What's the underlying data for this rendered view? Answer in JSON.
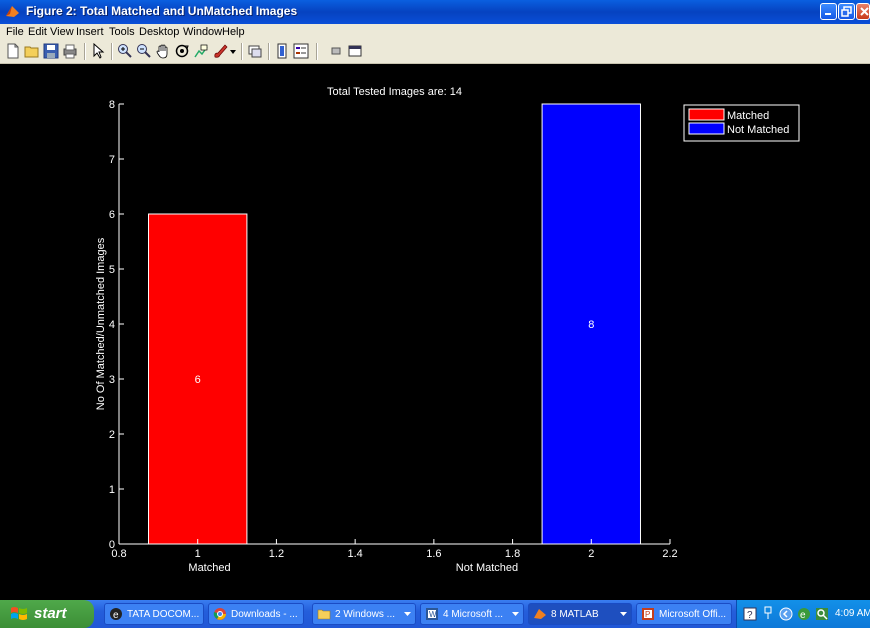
{
  "window": {
    "title": "Figure 2: Total Matched and UnMatched Images"
  },
  "menu": [
    "File",
    "Edit",
    "View",
    "Insert",
    "Tools",
    "Desktop",
    "Window",
    "Help"
  ],
  "toolbar_icons": [
    "new-figure-icon",
    "open-file-icon",
    "save-icon",
    "print-icon",
    "arrow-pointer-icon",
    "zoom-in-icon",
    "zoom-out-icon",
    "pan-hand-icon",
    "rotate-3d-icon",
    "data-cursor-icon",
    "brush-icon",
    "brush-dropdown-icon",
    "link-plot-icon",
    "colorbar-icon",
    "legend-icon",
    "hide-plot-tools-icon",
    "show-plot-tools-icon"
  ],
  "chart_data": {
    "type": "bar",
    "title": "Total Tested Images are: 14",
    "ylabel": "No Of Matched/Unmatched Images",
    "xlabel_left": "Matched",
    "xlabel_right": "Not Matched",
    "xlim": [
      0.8,
      2.2
    ],
    "ylim": [
      0,
      8
    ],
    "x_ticks": [
      "0.8",
      "1",
      "1.2",
      "1.4",
      "1.6",
      "1.8",
      "2",
      "2.2"
    ],
    "y_ticks": [
      "0",
      "1",
      "2",
      "3",
      "4",
      "5",
      "6",
      "7",
      "8"
    ],
    "series": [
      {
        "name": "Matched",
        "x": 1,
        "value": 6,
        "label": "6",
        "color": "#ff0000"
      },
      {
        "name": "Not Matched",
        "x": 2,
        "value": 8,
        "label": "8",
        "color": "#0000ff"
      }
    ],
    "bar_width": 0.25,
    "legend_position": "top-right",
    "background": "#000000",
    "axis_color": "#ffffff"
  },
  "taskbar": {
    "start_label": "start",
    "tasks": [
      {
        "label": "TATA DOCOM...",
        "icon": "tata-icon"
      },
      {
        "label": "Downloads - ...",
        "icon": "chrome-icon"
      },
      {
        "label": "2 Windows ...",
        "icon": "folder-icon"
      },
      {
        "label": "4 Microsoft ...",
        "icon": "office-icon"
      },
      {
        "label": "8 MATLAB",
        "icon": "matlab-icon"
      },
      {
        "label": "Microsoft Offi...",
        "icon": "powerpoint-icon"
      }
    ],
    "clock": "4:09 AM"
  }
}
